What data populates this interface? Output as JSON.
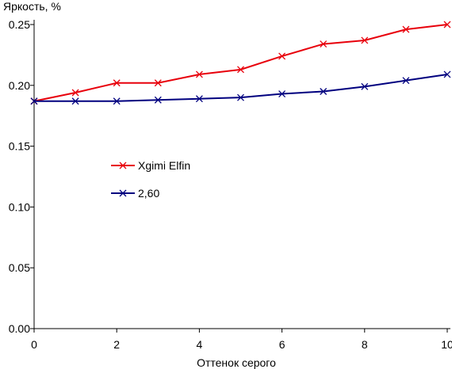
{
  "chart_data": {
    "type": "line",
    "ylabel": "Яркость, %",
    "xlabel": "Оттенок серого",
    "xlim": [
      0,
      10
    ],
    "ylim": [
      0,
      0.25
    ],
    "x_ticks": [
      "0",
      "2",
      "4",
      "6",
      "8",
      "10"
    ],
    "y_ticks": [
      "0.00",
      "0.05",
      "0.10",
      "0.15",
      "0.20",
      "0.25"
    ],
    "grid": false,
    "legend_position": "center-left",
    "x": [
      0,
      1,
      2,
      3,
      4,
      5,
      6,
      7,
      8,
      9,
      10
    ],
    "series": [
      {
        "name": "Xgimi Elfin",
        "color": "#e8000b",
        "marker": "x",
        "values": [
          0.187,
          0.194,
          0.202,
          0.202,
          0.209,
          0.213,
          0.224,
          0.234,
          0.237,
          0.246,
          0.25
        ]
      },
      {
        "name": "2,60",
        "color": "#00007f",
        "marker": "x",
        "values": [
          0.187,
          0.187,
          0.187,
          0.188,
          0.189,
          0.19,
          0.193,
          0.195,
          0.199,
          0.204,
          0.209
        ]
      }
    ]
  }
}
